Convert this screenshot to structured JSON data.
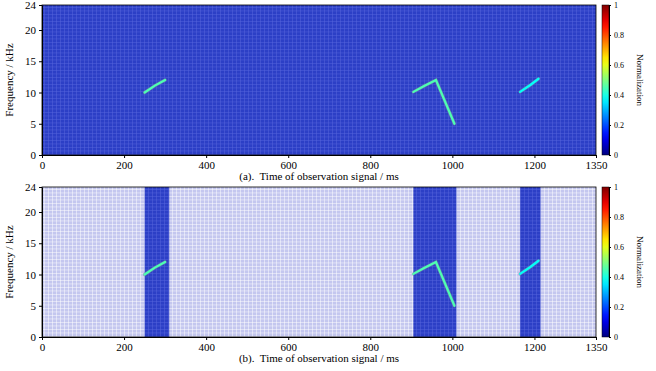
{
  "chart_data": [
    {
      "type": "line",
      "xlabel": "(a).  Time of observation signal / ms",
      "ylabel": "Frequency / kHz",
      "xlim": [
        0,
        1350
      ],
      "xticks": [
        0,
        200,
        400,
        600,
        800,
        1000,
        1200,
        1350
      ],
      "ylim": [
        0,
        24
      ],
      "yticks": [
        0,
        5,
        10,
        15,
        20,
        24
      ],
      "series": [
        {
          "x": [
            250,
            275,
            300
          ],
          "values": [
            10,
            11.1,
            12
          ],
          "intensity": 0.45
        },
        {
          "x": [
            905,
            930,
            960,
            1005
          ],
          "values": [
            10.1,
            11,
            12,
            5
          ],
          "intensity": 0.45
        },
        {
          "x": [
            1165,
            1190,
            1210
          ],
          "values": [
            10.1,
            11.2,
            12.2
          ],
          "intensity": 0.38
        }
      ],
      "colorbar": {
        "label": "Normalization",
        "range": [
          0,
          1
        ],
        "ticks": [
          0,
          0.2,
          0.4,
          0.6,
          0.8,
          1
        ]
      }
    },
    {
      "type": "line",
      "xlabel": "(b).  Time of observation signal / ms",
      "ylabel": "Frequency / kHz",
      "xlim": [
        0,
        1350
      ],
      "xticks": [
        0,
        200,
        400,
        600,
        800,
        1000,
        1200,
        1350
      ],
      "ylim": [
        0,
        24
      ],
      "yticks": [
        0,
        5,
        10,
        15,
        20,
        24
      ],
      "bands": [
        [
          250,
          310
        ],
        [
          905,
          1010
        ],
        [
          1165,
          1215
        ]
      ],
      "series": [
        {
          "x": [
            250,
            275,
            300
          ],
          "values": [
            10,
            11.1,
            12
          ],
          "intensity": 0.45
        },
        {
          "x": [
            905,
            930,
            960,
            1005
          ],
          "values": [
            10.1,
            11,
            12,
            5
          ],
          "intensity": 0.45
        },
        {
          "x": [
            1165,
            1190,
            1210
          ],
          "values": [
            10.1,
            11.2,
            12.2
          ],
          "intensity": 0.38
        }
      ],
      "colorbar": {
        "label": "Normalization",
        "range": [
          0,
          1
        ],
        "ticks": [
          0,
          0.2,
          0.4,
          0.6,
          0.8,
          1
        ]
      }
    }
  ]
}
